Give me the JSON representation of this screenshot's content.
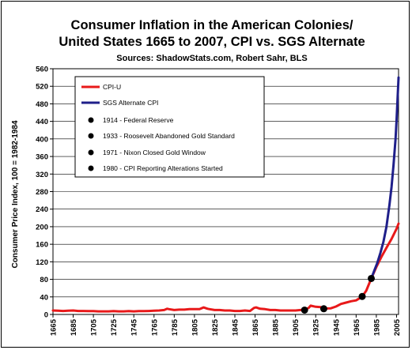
{
  "chart_data": {
    "type": "line",
    "title_line1": "Consumer Inflation in the American Colonies/",
    "title_line2": "United States 1665 to 2007, CPI vs. SGS Alternate",
    "subtitle": "Sources: ShadowStats.com, Robert Sahr, BLS",
    "ylabel": "Consumer Price Index, 100 = 1982-1984",
    "xlabel": "",
    "xlim": [
      1665,
      2007
    ],
    "ylim": [
      0,
      560
    ],
    "yticks": [
      "0",
      "40",
      "80",
      "120",
      "160",
      "200",
      "240",
      "280",
      "320",
      "360",
      "400",
      "440",
      "480",
      "520",
      "560"
    ],
    "xticks": [
      "1665",
      "1685",
      "1705",
      "1725",
      "1745",
      "1765",
      "1785",
      "1805",
      "1825",
      "1845",
      "1865",
      "1885",
      "1905",
      "1925",
      "1945",
      "1965",
      "1985",
      "2005"
    ],
    "series": [
      {
        "name": "CPI-U",
        "color": "#e8191a",
        "x": [
          1665,
          1670,
          1675,
          1680,
          1685,
          1690,
          1695,
          1700,
          1705,
          1710,
          1715,
          1720,
          1725,
          1730,
          1735,
          1740,
          1745,
          1750,
          1755,
          1760,
          1765,
          1770,
          1775,
          1778,
          1780,
          1785,
          1790,
          1795,
          1800,
          1805,
          1810,
          1814,
          1818,
          1820,
          1825,
          1830,
          1835,
          1840,
          1845,
          1850,
          1855,
          1860,
          1864,
          1866,
          1870,
          1875,
          1880,
          1885,
          1890,
          1895,
          1900,
          1905,
          1910,
          1914,
          1918,
          1920,
          1925,
          1930,
          1933,
          1935,
          1940,
          1945,
          1950,
          1955,
          1960,
          1965,
          1970,
          1971,
          1975,
          1980,
          1985,
          1990,
          1995,
          2000,
          2005,
          2007
        ],
        "y": [
          9,
          8.5,
          8,
          8.5,
          9,
          8,
          8,
          7.5,
          7.5,
          7,
          7,
          7,
          7.5,
          7,
          7,
          7.5,
          7,
          7.5,
          7.5,
          8,
          8.5,
          9,
          10,
          13,
          12,
          10,
          11,
          11,
          12,
          12,
          12,
          16,
          13,
          12,
          10,
          10,
          9,
          9,
          8,
          8,
          9,
          8,
          15,
          16,
          13,
          12,
          10,
          10,
          9,
          9,
          9,
          9,
          10,
          10,
          15,
          20,
          17.5,
          16.7,
          13,
          13.7,
          14,
          18,
          24,
          27,
          30,
          32,
          39,
          41,
          54,
          82,
          108,
          131,
          152,
          172,
          195,
          207
        ]
      },
      {
        "name": "SGS Alternate CPI",
        "color": "#1f1f8a",
        "x": [
          1980,
          1983,
          1986,
          1989,
          1992,
          1995,
          1998,
          2000,
          2002,
          2004,
          2005,
          2006,
          2007
        ],
        "y": [
          82,
          100,
          118,
          140,
          165,
          200,
          250,
          290,
          340,
          400,
          440,
          490,
          540
        ]
      }
    ],
    "events": [
      {
        "label": "1914 - Federal Reserve",
        "x": 1914,
        "y": 10
      },
      {
        "label": "1933 - Roosevelt Abandoned Gold Standard",
        "x": 1933,
        "y": 13
      },
      {
        "label": "1971 - Nixon Closed Gold Window",
        "x": 1971,
        "y": 41
      },
      {
        "label": "1980 - CPI Reporting Alterations Started",
        "x": 1980,
        "y": 82
      }
    ],
    "legend_placement": "top-left"
  }
}
